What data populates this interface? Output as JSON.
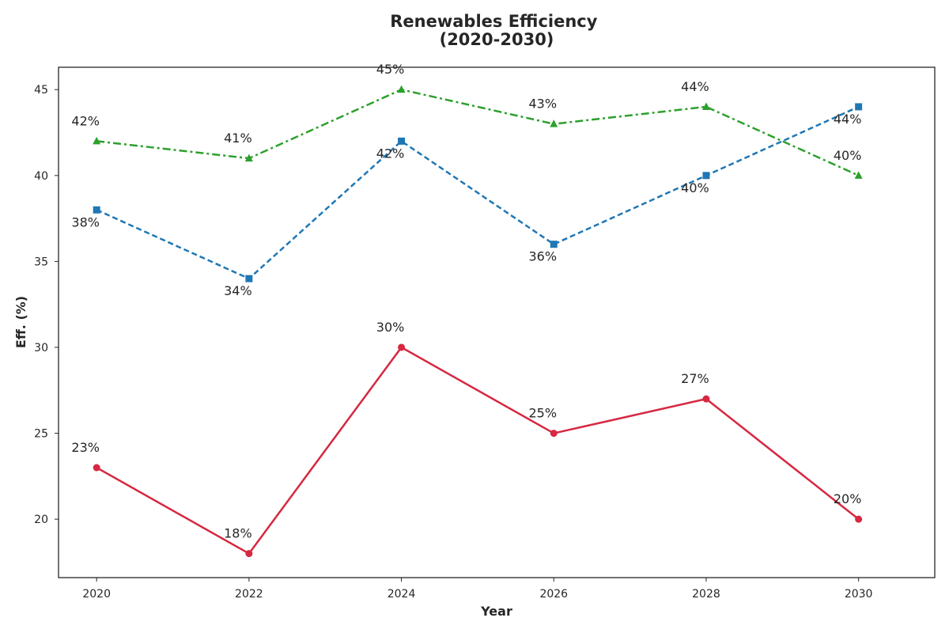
{
  "chart_data": {
    "type": "line",
    "title": "Renewables Efficiency\n(2020-2030)",
    "xlabel": "Year",
    "ylabel": "Eff. (%)",
    "x": [
      2020,
      2022,
      2024,
      2026,
      2028,
      2030
    ],
    "xlim": [
      2019.5,
      2031.0
    ],
    "ylim": [
      16.6,
      46.3
    ],
    "xticks": [
      2020,
      2022,
      2024,
      2026,
      2028,
      2030
    ],
    "yticks": [
      20,
      25,
      30,
      35,
      40,
      45
    ],
    "grid": false,
    "legend": "none",
    "series": [
      {
        "values": [
          23,
          18,
          30,
          25,
          27,
          20
        ],
        "labels": [
          "23%",
          "18%",
          "30%",
          "25%",
          "27%",
          "20%"
        ],
        "color": "#d62841",
        "line_style": "solid",
        "marker": "circle"
      },
      {
        "values": [
          38,
          34,
          42,
          36,
          40,
          44
        ],
        "labels": [
          "38%",
          "34%",
          "42%",
          "36%",
          "40%",
          "44%"
        ],
        "color": "#1f77b4",
        "line_style": "dashed",
        "marker": "square"
      },
      {
        "values": [
          42,
          41,
          45,
          43,
          44,
          40
        ],
        "labels": [
          "42%",
          "41%",
          "45%",
          "43%",
          "44%",
          "40%"
        ],
        "color": "#2ca02c",
        "line_style": "dashdot",
        "marker": "triangle"
      }
    ]
  }
}
